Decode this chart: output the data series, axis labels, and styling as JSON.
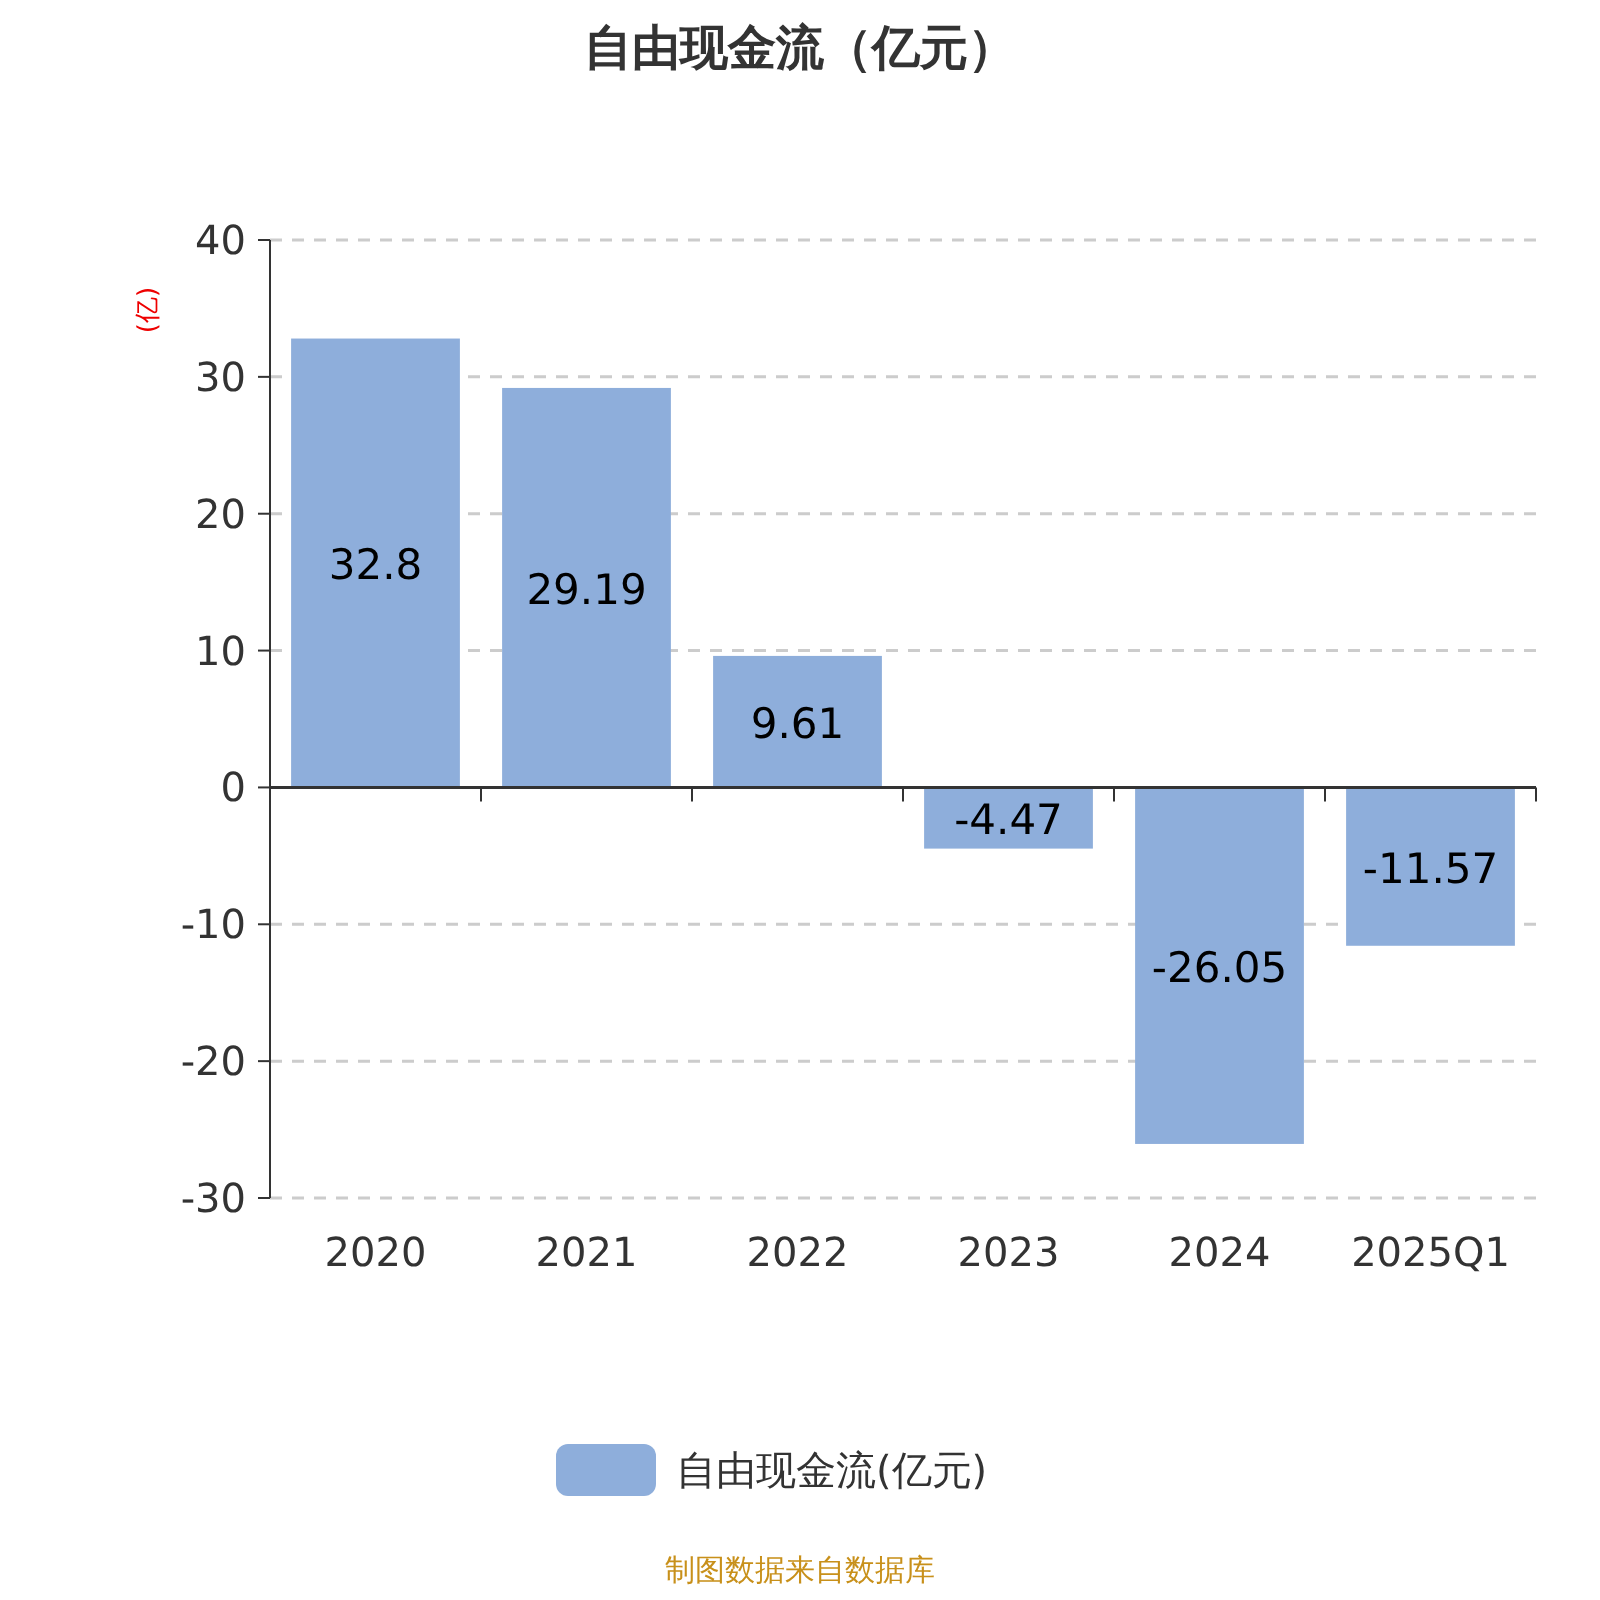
{
  "chart_data": {
    "type": "bar",
    "title": "自由现金流（亿元）",
    "ylabel": "(亿)",
    "categories": [
      "2020",
      "2021",
      "2022",
      "2023",
      "2024",
      "2025Q1"
    ],
    "series": [
      {
        "name": "自由现金流(亿元)",
        "color": "#8eaedb",
        "values": [
          32.8,
          29.19,
          9.61,
          -4.47,
          -26.05,
          -11.57
        ]
      }
    ],
    "ylim": [
      -30,
      40
    ],
    "yticks": [
      -30,
      -20,
      -10,
      0,
      10,
      20,
      30,
      40
    ],
    "grid": "y",
    "legend": "bottom",
    "data_labels": true,
    "annotations": [
      "制图数据来自数据库"
    ]
  }
}
